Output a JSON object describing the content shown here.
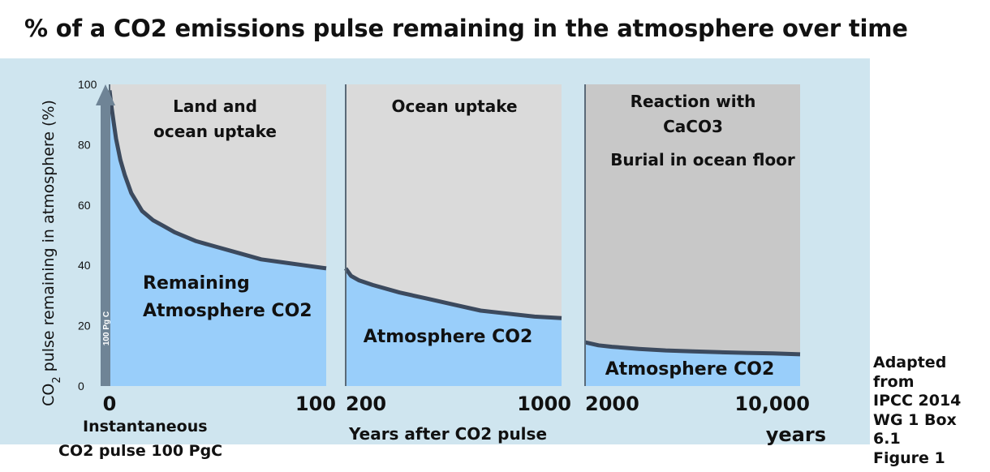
{
  "chart_data": {
    "type": "area",
    "title": "% of a CO2 emissions pulse remaining in the atmosphere over time",
    "ylabel": {
      "prefix": "CO",
      "sub": "2",
      "rest": " pulse remaining in atmosphere (%)"
    },
    "xlabel": "Years after CO2 pulse",
    "ylim": [
      0,
      100
    ],
    "yticks": [
      0,
      20,
      40,
      60,
      80,
      100
    ],
    "pulse_arrow_label": "100 Pg C",
    "source_note": [
      "Adapted",
      "from",
      "IPCC 2014",
      "WG 1 Box 6.1",
      "Figure 1"
    ],
    "panels": [
      {
        "xlim": [
          0,
          100
        ],
        "x_start_label": "0",
        "x_end_label": "100",
        "x_caption": [
          "Instantaneous",
          "CO2 pulse 100 PgC"
        ],
        "upper_region_label": [
          "Land and",
          "ocean uptake"
        ],
        "lower_region_label": [
          "Remaining",
          "Atmosphere CO2"
        ],
        "series": {
          "name": "Atmosphere CO2",
          "x": [
            0,
            1,
            2,
            3,
            5,
            7,
            10,
            15,
            20,
            25,
            30,
            40,
            50,
            60,
            70,
            80,
            90,
            100
          ],
          "y": [
            98,
            92,
            87,
            82,
            75,
            70,
            64,
            58,
            55,
            53,
            51,
            48,
            46,
            44,
            42,
            41,
            40,
            39
          ]
        }
      },
      {
        "xlim": [
          200,
          1000
        ],
        "x_start_label": "200",
        "x_end_label": "1000",
        "upper_region_label": [
          "Ocean uptake"
        ],
        "lower_region_label": [
          "Atmosphere CO2"
        ],
        "series": {
          "name": "Atmosphere CO2",
          "x": [
            200,
            220,
            250,
            300,
            400,
            500,
            600,
            700,
            800,
            900,
            1000
          ],
          "y": [
            39,
            36.5,
            35,
            33.5,
            31,
            29,
            27,
            25,
            24,
            23,
            22.5
          ]
        }
      },
      {
        "xlim": [
          2000,
          10000
        ],
        "x_start_label": "2000",
        "x_end_label": "10,000",
        "x_end_sub_label": "years",
        "upper_region_label": [
          "Reaction with",
          "CaCO3",
          "Burial in ocean floor"
        ],
        "lower_region_label": [
          "Atmosphere CO2"
        ],
        "series": {
          "name": "Atmosphere CO2",
          "x": [
            2000,
            2500,
            3000,
            4000,
            5000,
            6000,
            7000,
            8000,
            9000,
            10000
          ],
          "y": [
            14.5,
            13.5,
            13,
            12.3,
            11.8,
            11.5,
            11.2,
            11,
            10.8,
            10.5
          ]
        }
      }
    ]
  }
}
